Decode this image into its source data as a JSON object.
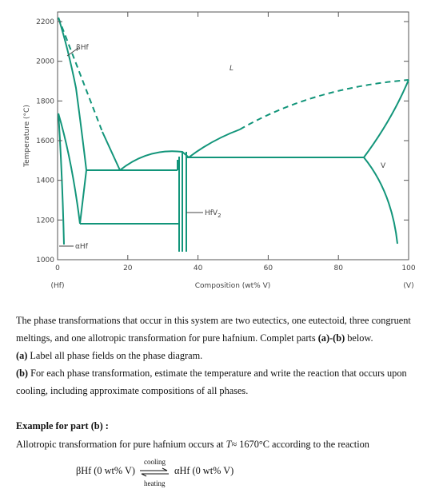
{
  "diagram": {
    "y_axis_label": "Temperature (°C)",
    "x_axis_label": "Composition (wt% V)",
    "left_end_label": "(Hf)",
    "right_end_label": "(V)",
    "xlim": [
      0,
      100
    ],
    "xticks": [
      0,
      20,
      40,
      60,
      80,
      100
    ],
    "ylim": [
      1000,
      2200
    ],
    "yticks": [
      1000,
      1200,
      1400,
      1600,
      1800,
      2000,
      2200
    ],
    "labels": {
      "beta": "βHf",
      "liquid": "L",
      "v": "V",
      "compound": "HfV",
      "compound_sub": "2",
      "alpha": "αHf"
    }
  },
  "text": {
    "intro": [
      "The phase transformations that occur in this system are two eutectics, one eutectoid, three congruent meltings, and one allotropic transformation for pure hafnium. Complet parts ",
      "(a)-(b)",
      " below."
    ],
    "part_a": [
      "(a)",
      " Label all phase fields on the phase diagram."
    ],
    "part_b": [
      "(b)",
      " For each phase transformation, estimate the temperature and write the reaction that occurs upon cooling, including approximate compositions of all phases."
    ],
    "example_heading": "Example for part  (b) :",
    "example": [
      "Allotropic transformation for pure hafnium occurs at ",
      "T",
      "≈ 1670°C  according to the reaction"
    ],
    "reaction": {
      "left": "βHf (0 wt% V)",
      "top": "cooling",
      "bottom": "heating",
      "right": "αHf (0 wt% V)"
    }
  }
}
